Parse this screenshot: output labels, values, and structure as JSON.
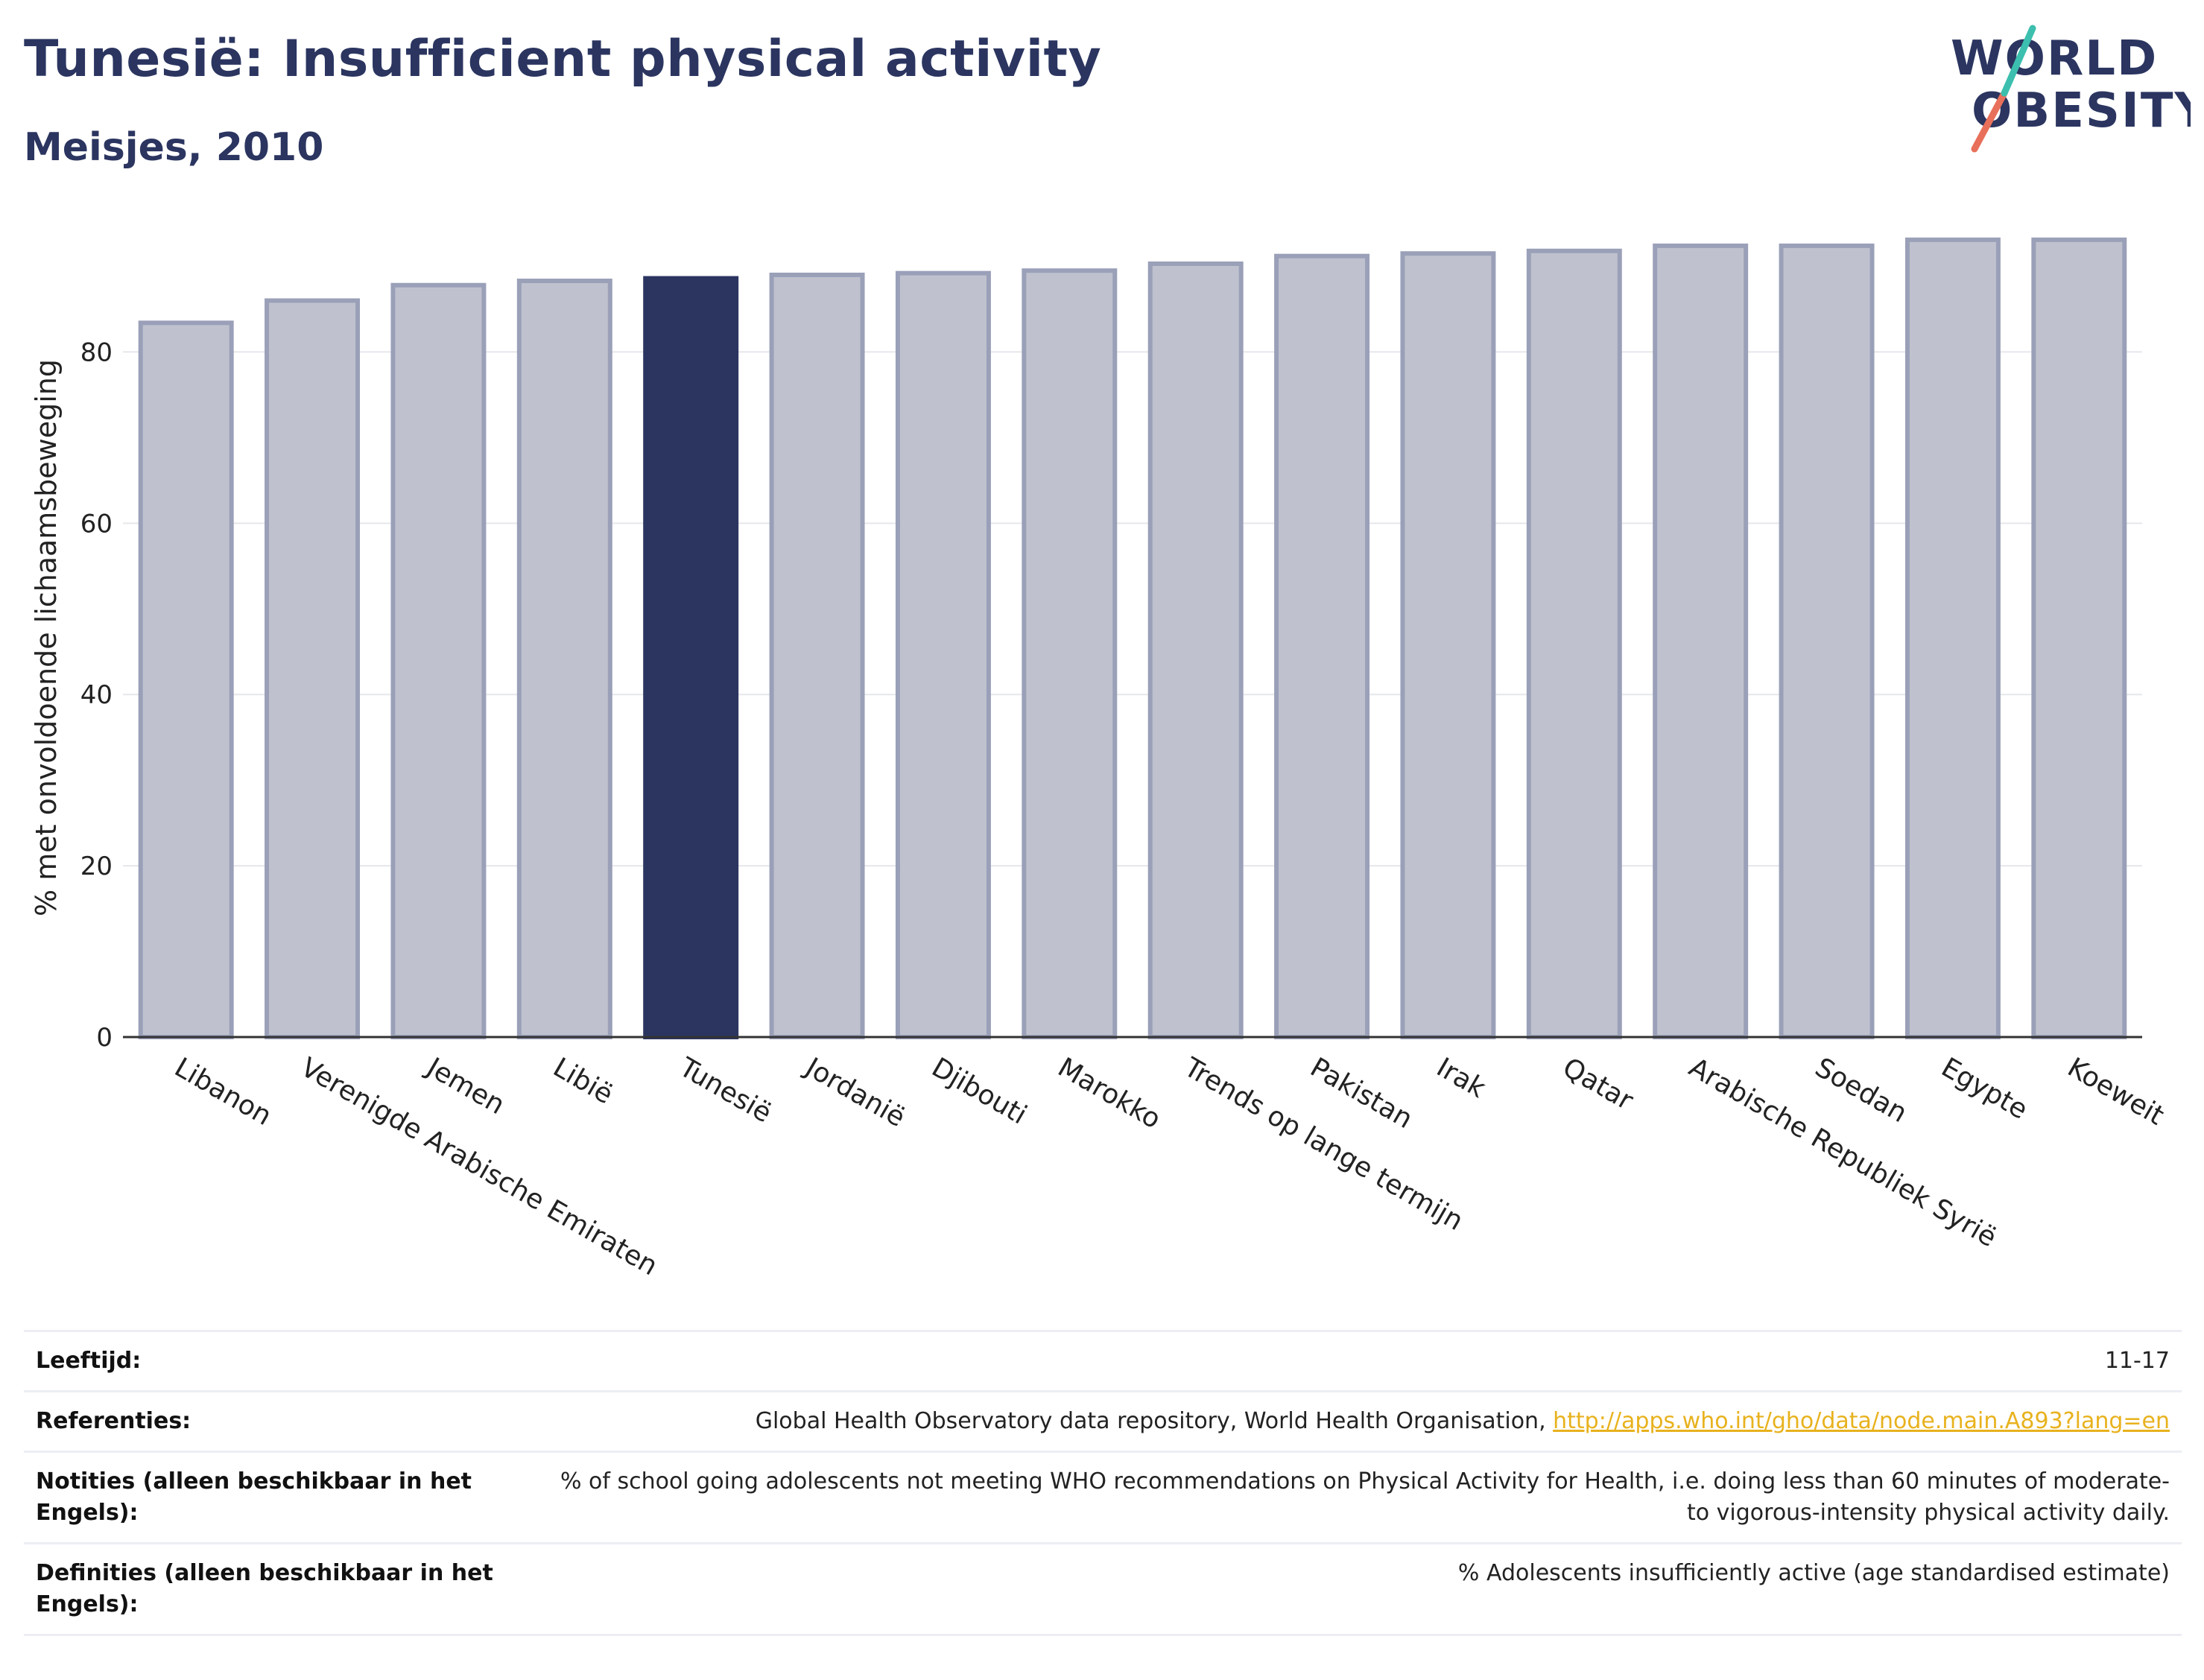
{
  "header": {
    "title": "Tunesië: Insufficient physical activity",
    "subtitle": "Meisjes, 2010"
  },
  "logo": {
    "line1": "WORLD",
    "line2": "OBESITY",
    "colors": {
      "text": "#2b3560",
      "slash_teal": "#3cbfae",
      "slash_coral": "#e8705a"
    }
  },
  "chart_data": {
    "type": "bar",
    "ylabel": "% met onvoldoende lichaamsbeweging",
    "xlabel": "",
    "ylim": [
      0,
      95
    ],
    "yticks": [
      0,
      20,
      40,
      60,
      80
    ],
    "grid": true,
    "highlight": "Tunesië",
    "colors": {
      "bar": "#bfc2ce",
      "bar_edge": "#9aa0b8",
      "highlight": "#2b3560"
    },
    "categories": [
      "Libanon",
      "Verenigde Arabische Emiraten",
      "Jemen",
      "Libië",
      "Tunesië",
      "Jordanië",
      "Djibouti",
      "Marokko",
      "Trends op lange termijn",
      "Pakistan",
      "Irak",
      "Qatar",
      "Arabische Republiek Syrië",
      "Soedan",
      "Egypte",
      "Koeweit"
    ],
    "values": [
      83.4,
      86.0,
      87.8,
      88.3,
      88.6,
      89.0,
      89.2,
      89.5,
      90.3,
      91.2,
      91.5,
      91.8,
      92.4,
      92.4,
      93.1,
      93.1
    ]
  },
  "info": {
    "rows": [
      {
        "key": "Leeftijd:",
        "value": "11-17"
      },
      {
        "key": "Referenties:",
        "value": "Global Health Observatory data repository, World Health Organisation, ",
        "link": "http://apps.who.int/gho/data/node.main.A893?lang=en"
      },
      {
        "key": "Notities (alleen beschikbaar in het Engels):",
        "value": "% of school going adolescents not meeting WHO recommendations on Physical Activity for Health, i.e. doing less than 60 minutes of moderate- to vigorous-intensity physical activity daily."
      },
      {
        "key": "Definities (alleen beschikbaar in het Engels):",
        "value": "% Adolescents insufficiently active (age standardised estimate)"
      }
    ]
  }
}
